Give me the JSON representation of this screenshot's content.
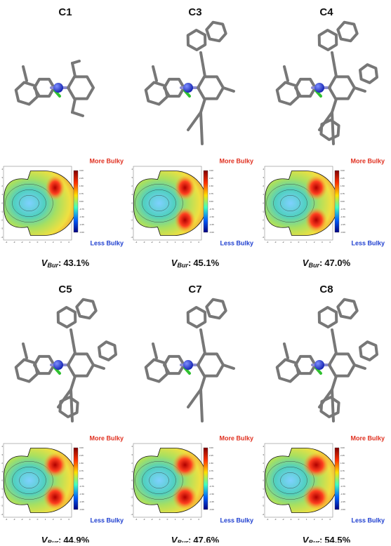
{
  "figure": {
    "more_label": "More Bulky",
    "less_label": "Less Bulky",
    "vbur_symbol": "V",
    "vbur_subscript": "Bur",
    "vbur_separator": ":",
    "colorbar_ticks": [
      "3.00",
      "2.25",
      "1.50",
      "0.75",
      "0.00",
      "-0.75",
      "-1.50",
      "-2.25",
      "-3.00"
    ],
    "axis_ticks": [
      "-4",
      "-3",
      "-2",
      "-1",
      "0",
      "1",
      "2",
      "3",
      "4"
    ],
    "panels": [
      {
        "label": "C1",
        "vbur": "43.1%"
      },
      {
        "label": "C3",
        "vbur": "45.1%"
      },
      {
        "label": "C4",
        "vbur": "47.0%"
      },
      {
        "label": "C5",
        "vbur": "44.9%"
      },
      {
        "label": "C7",
        "vbur": "47.6%"
      },
      {
        "label": "C8",
        "vbur": "54.5%"
      }
    ]
  }
}
